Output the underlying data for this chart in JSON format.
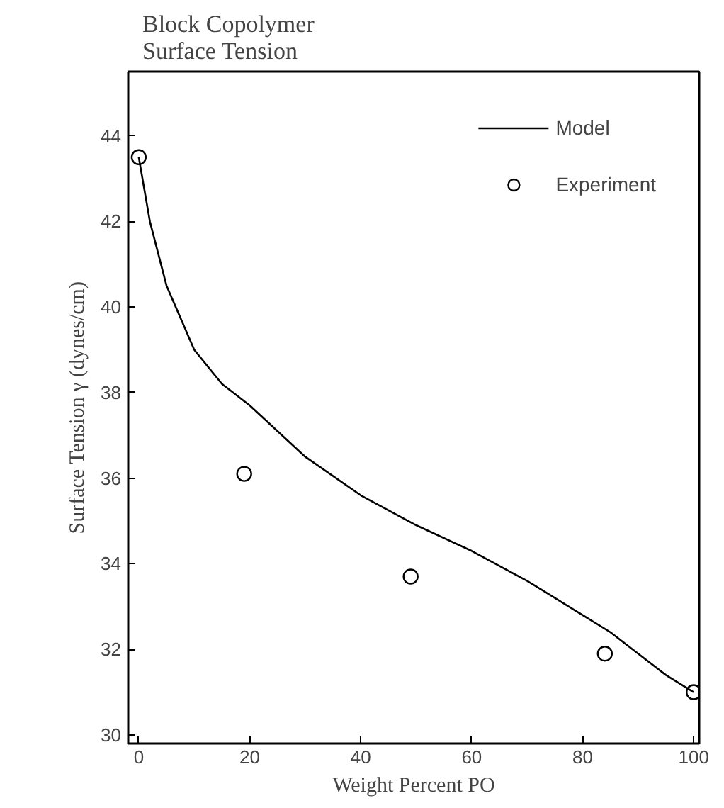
{
  "chart_data": {
    "type": "line",
    "title": "Block Copolymer\nSurface Tension",
    "xlabel": "Weight Percent PO",
    "ylabel": "Surface Tension γ (dynes/cm)",
    "xlim": [
      -1.9,
      101
    ],
    "ylim": [
      29.8,
      45.5
    ],
    "xticks": [
      0,
      20,
      40,
      60,
      80,
      100
    ],
    "yticks": [
      30,
      32,
      34,
      36,
      38,
      40,
      42,
      44
    ],
    "grid": false,
    "legend": "top right",
    "series": [
      {
        "name": "Model",
        "color": "#000000",
        "marker": "none",
        "line_style": "solid",
        "x": [
          0,
          2,
          5,
          10,
          15,
          20,
          30,
          40,
          50,
          60,
          70,
          80,
          85,
          90,
          95,
          100
        ],
        "values": [
          43.5,
          42.0,
          40.5,
          39.0,
          38.2,
          37.7,
          36.5,
          35.6,
          34.9,
          34.3,
          33.6,
          32.8,
          32.4,
          31.9,
          31.4,
          31.0
        ]
      },
      {
        "name": "Experiment",
        "type": "scatter",
        "color": "#000000",
        "marker": "circle",
        "x": [
          0,
          19,
          49,
          84,
          100
        ],
        "values": [
          43.5,
          36.1,
          33.7,
          31.9,
          31.0
        ]
      }
    ]
  }
}
